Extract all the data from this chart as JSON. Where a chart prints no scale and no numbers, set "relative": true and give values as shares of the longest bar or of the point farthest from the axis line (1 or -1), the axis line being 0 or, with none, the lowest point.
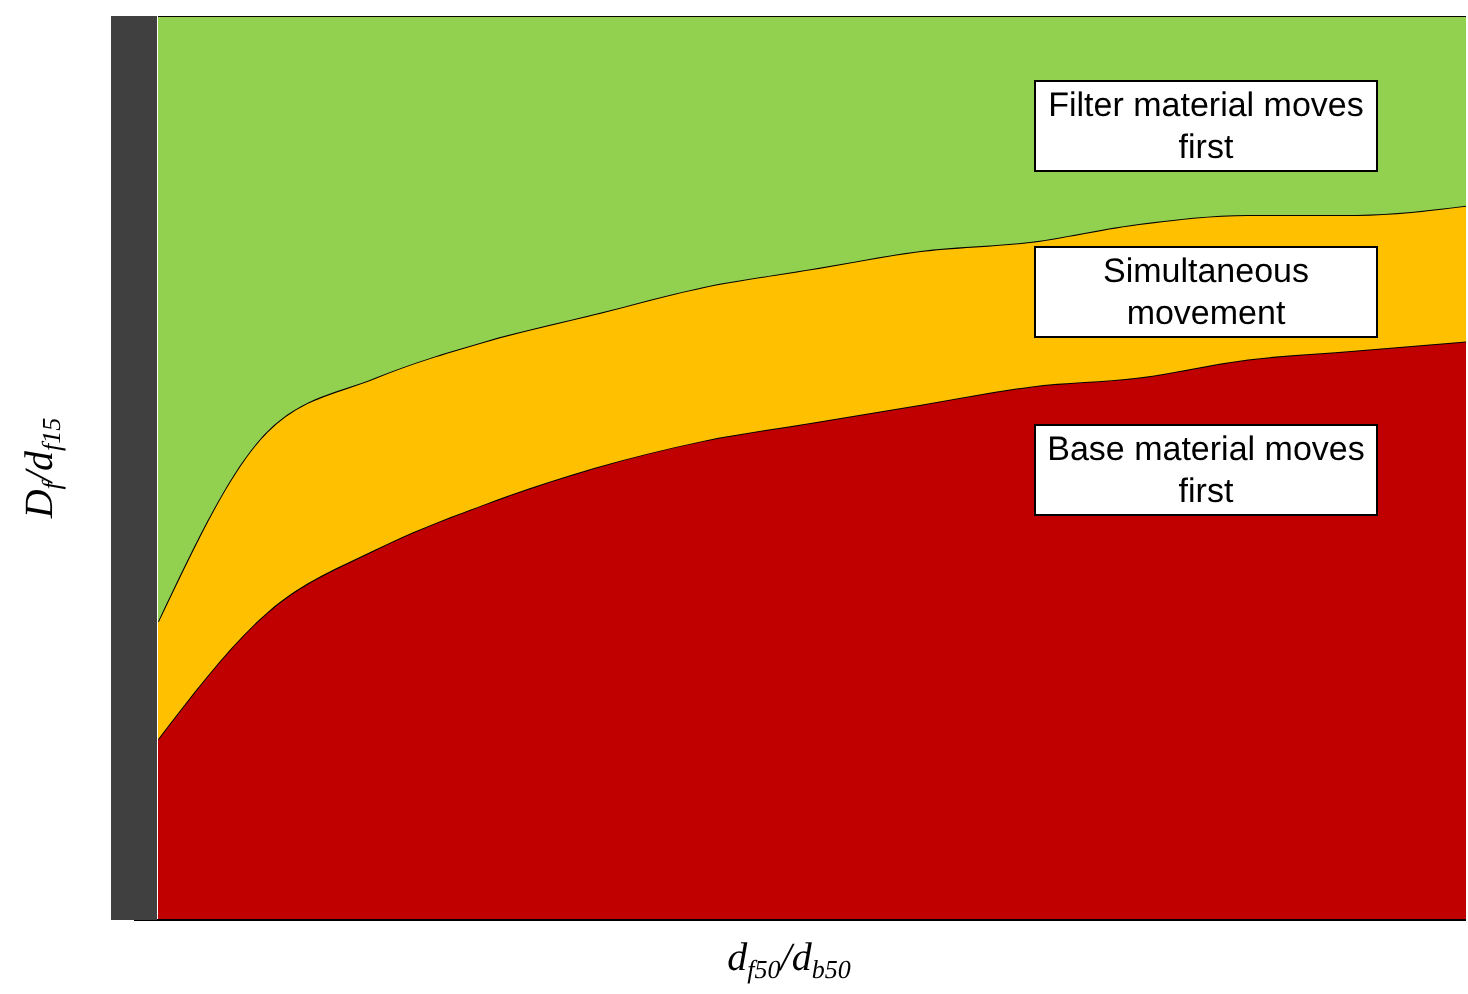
{
  "chart_data": {
    "type": "area",
    "relative": true,
    "stacked": true,
    "xlabel": "d$_{f50}$/d$_{b50}$",
    "ylabel": "D$_{f}$/d$_{f15}$",
    "legend": false,
    "grid": false,
    "categories": [
      null,
      null,
      null,
      null,
      null,
      null,
      null,
      null,
      null,
      null,
      null,
      null,
      null
    ],
    "series": [
      {
        "color": "#c00000",
        "values": [
          0.2,
          0.34,
          0.41,
          0.46,
          0.5,
          0.53,
          0.55,
          0.57,
          0.59,
          0.6,
          0.62,
          0.63,
          0.64
        ]
      },
      {
        "color": "#ffc000",
        "values": [
          0.13,
          0.2,
          0.19,
          0.18,
          0.17,
          0.17,
          0.17,
          0.17,
          0.16,
          0.17,
          0.16,
          0.15,
          0.15
        ]
      },
      {
        "color": "#92d050",
        "values": [
          0.67,
          0.46,
          0.4,
          0.36,
          0.33,
          0.3,
          0.28,
          0.26,
          0.25,
          0.23,
          0.22,
          0.22,
          0.21
        ]
      }
    ],
    "annotations": [
      "Filter material moves first",
      "Simultaneous movement",
      "Base material moves first"
    ]
  }
}
